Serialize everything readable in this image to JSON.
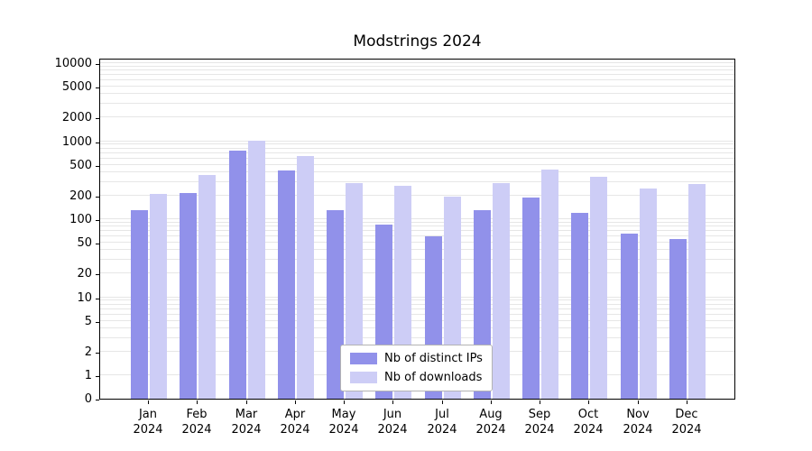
{
  "chart_data": {
    "type": "bar",
    "title": "Modstrings 2024",
    "year_label": "2024",
    "categories": [
      "Jan",
      "Feb",
      "Mar",
      "Apr",
      "May",
      "Jun",
      "Jul",
      "Aug",
      "Sep",
      "Oct",
      "Nov",
      "Dec"
    ],
    "series": [
      {
        "name": "Nb of distinct IPs",
        "color": "#9191ea",
        "values": [
          130,
          215,
          750,
          420,
          130,
          85,
          60,
          130,
          190,
          120,
          65,
          55
        ]
      },
      {
        "name": "Nb of downloads",
        "color": "#cdcdf6",
        "values": [
          210,
          370,
          1020,
          640,
          290,
          265,
          195,
          290,
          430,
          345,
          250,
          285
        ]
      }
    ],
    "y_ticks": [
      10000,
      5000,
      2000,
      1000,
      500,
      200,
      100,
      50,
      20,
      10,
      5,
      2,
      1,
      0
    ],
    "y_scale": "symlog",
    "ylim": [
      0,
      14000
    ],
    "grid": "horizontal-log-minor",
    "grid_color": "#e6e6e6",
    "legend_position": "bottom-center"
  }
}
